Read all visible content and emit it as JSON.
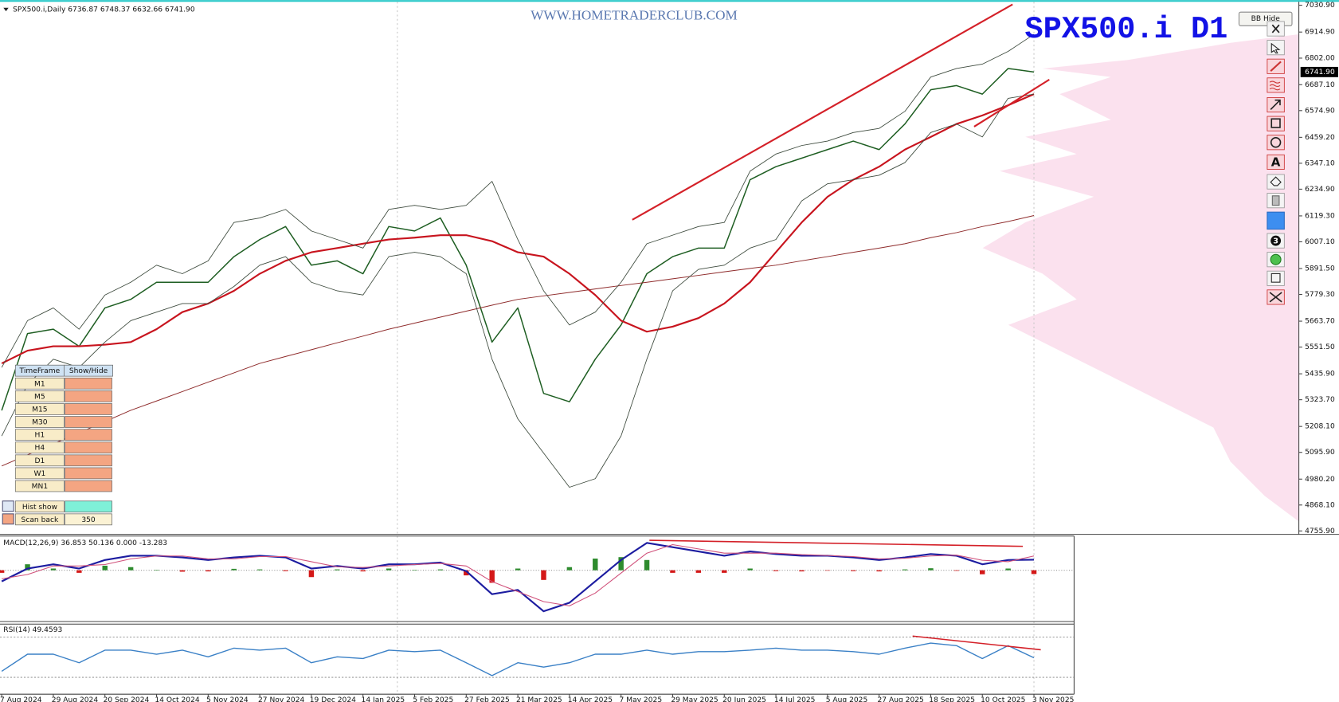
{
  "chart_data": [
    {
      "type": "line",
      "title": "SPX500.i D1",
      "watermark": "WWW.HOMETRADERCLUB.COM",
      "info": "SPX500.i,Daily  6736.87 6748.37 6632.66 6741.90",
      "last_price": {
        "value": 6741.9,
        "label": "6741.90"
      },
      "categories": [
        "7 Aug 2024",
        null,
        "29 Aug 2024",
        null,
        "20 Sep 2024",
        null,
        "14 Oct 2024",
        null,
        "5 Nov 2024",
        null,
        "27 Nov 2024",
        null,
        "19 Dec 2024",
        null,
        "14 Jan 2025",
        null,
        "5 Feb 2025",
        null,
        "27 Feb 2025",
        null,
        "21 Mar 2025",
        null,
        "14 Apr 2025",
        null,
        "7 May 2025",
        null,
        "29 May 2025",
        null,
        "20 Jun 2025",
        null,
        "14 Jul 2025",
        null,
        "5 Aug 2025",
        null,
        "27 Aug 2025",
        null,
        "18 Sep 2025",
        null,
        "10 Oct 2025",
        null,
        "3 Nov 2025"
      ],
      "series": [
        {
          "color": "#1e5e22",
          "values": [
            5277,
            5610,
            5629,
            5555,
            5721,
            5758,
            5832,
            5832,
            5832,
            5943,
            6017,
            6073,
            5906,
            5925,
            5869,
            6073,
            6054,
            6110,
            5906,
            5573,
            5721,
            5351,
            5315,
            5499,
            5647,
            5869,
            5943,
            5980,
            5980,
            6276,
            6332,
            6369,
            6406,
            6443,
            6406,
            6517,
            6665,
            6683,
            6646,
            6757,
            6741.9
          ]
        },
        {
          "color": "#c8141e",
          "values": [
            5481,
            5536,
            5555,
            5555,
            5562,
            5573,
            5629,
            5703,
            5740,
            5795,
            5869,
            5925,
            5962,
            5980,
            5999,
            6017,
            6025,
            6036,
            6036,
            6010,
            5962,
            5943,
            5869,
            5777,
            5666,
            5618,
            5640,
            5677,
            5740,
            5832,
            5962,
            6091,
            6202,
            6276,
            6332,
            6406,
            6461,
            6517,
            6554,
            6598,
            6646
          ]
        },
        {
          "color": "#8e2a2a",
          "values": [
            5037,
            5085,
            5133,
            5181,
            5229,
            5278,
            5318,
            5359,
            5400,
            5440,
            5481,
            5511,
            5540,
            5570,
            5599,
            5629,
            5655,
            5681,
            5707,
            5733,
            5758,
            5773,
            5788,
            5803,
            5818,
            5832,
            5847,
            5862,
            5877,
            5892,
            5906,
            5925,
            5943,
            5962,
            5980,
            5999,
            6025,
            6047,
            6073,
            6095,
            6121
          ]
        },
        {
          "color": "#3d4a3d",
          "values": [
            5463,
            5666,
            5721,
            5629,
            5777,
            5832,
            5906,
            5869,
            5925,
            6091,
            6110,
            6147,
            6054,
            6017,
            5980,
            6147,
            6165,
            6147,
            6165,
            6269,
            6017,
            5795,
            5647,
            5703,
            5832,
            5999,
            6036,
            6073,
            6091,
            6313,
            6387,
            6424,
            6443,
            6480,
            6498,
            6572,
            6720,
            6757,
            6776,
            6831,
            6905
          ]
        },
        {
          "color": "#3d4a3d",
          "values": [
            5167,
            5389,
            5499,
            5463,
            5573,
            5666,
            5703,
            5740,
            5740,
            5814,
            5906,
            5943,
            5832,
            5795,
            5777,
            5943,
            5962,
            5943,
            5869,
            5499,
            5241,
            5093,
            4945,
            4982,
            5167,
            5499,
            5795,
            5888,
            5906,
            5980,
            6017,
            6184,
            6258,
            6276,
            6295,
            6350,
            6480,
            6517,
            6461,
            6628,
            6646
          ]
        }
      ],
      "ylim": [
        4755.9,
        7030.9
      ],
      "yticks": [
        {
          "value": 7030.9,
          "label": "7030.90"
        },
        {
          "value": 6914.9,
          "label": "6914.90"
        },
        {
          "value": 6802,
          "label": "6802.00"
        },
        {
          "value": 6687.1,
          "label": "6687.10"
        },
        {
          "value": 6574.9,
          "label": "6574.90"
        },
        {
          "value": 6459.2,
          "label": "6459.20"
        },
        {
          "value": 6347.1,
          "label": "6347.10"
        },
        {
          "value": 6234.9,
          "label": "6234.90"
        },
        {
          "value": 6119.3,
          "label": "6119.30"
        },
        {
          "value": 6007.1,
          "label": "6007.10"
        },
        {
          "value": 5891.5,
          "label": "5891.50"
        },
        {
          "value": 5779.3,
          "label": "5779.30"
        },
        {
          "value": 5663.7,
          "label": "5663.70"
        },
        {
          "value": 5551.5,
          "label": "5551.50"
        },
        {
          "value": 5435.9,
          "label": "5435.90"
        },
        {
          "value": 5323.7,
          "label": "5323.70"
        },
        {
          "value": 5208.1,
          "label": "5208.10"
        },
        {
          "value": 5095.9,
          "label": "5095.90"
        },
        {
          "value": 4980.2,
          "label": "4980.20"
        },
        {
          "value": 4868.1,
          "label": "4868.10"
        },
        {
          "value": 4755.9,
          "label": "4755.90"
        }
      ]
    },
    {
      "type": "macd",
      "title": "MACD(12,26,9) 36.853 50.136 0.000 -13.283",
      "ylim": [
        -180,
        120
      ],
      "series": [
        {
          "color": "#1c1ca0",
          "values": [
            -39,
            6,
            21,
            6,
            36,
            51,
            51,
            45,
            36,
            45,
            51,
            45,
            6,
            15,
            6,
            21,
            21,
            27,
            -3,
            -84,
            -69,
            -144,
            -114,
            -39,
            36,
            96,
            81,
            66,
            51,
            66,
            57,
            51,
            51,
            45,
            36,
            45,
            57,
            51,
            21,
            36,
            36.853
          ]
        },
        {
          "color": "#d0507a",
          "values": [
            -30,
            -15,
            15,
            15,
            20,
            40,
            50,
            50,
            40,
            40,
            48,
            48,
            30,
            12,
            10,
            15,
            20,
            24,
            15,
            -40,
            -75,
            -110,
            -125,
            -80,
            -10,
            60,
            90,
            75,
            60,
            60,
            60,
            55,
            52,
            48,
            40,
            42,
            50,
            53,
            35,
            30,
            50.136
          ]
        }
      ],
      "histogram": {
        "colors": [
          "#2e8b2e",
          "#d41818"
        ],
        "values": [
          -9,
          21,
          6,
          -9,
          16,
          11,
          1,
          -5,
          -4,
          5,
          3,
          -3,
          -24,
          3,
          -4,
          6,
          1,
          3,
          -18,
          -44,
          6,
          -34,
          11,
          41,
          46,
          36,
          -9,
          -9,
          -9,
          6,
          -3,
          -4,
          -1,
          -3,
          -4,
          3,
          7,
          -2,
          -14,
          6,
          -13.283
        ]
      }
    },
    {
      "type": "rsi",
      "title": "RSI(14) 49.4593",
      "ylim": [
        15,
        82
      ],
      "levels": [
        30,
        70
      ],
      "color": "#3a80c6",
      "values": [
        36,
        53,
        53,
        44.5,
        57,
        57,
        53,
        57,
        50.4,
        59,
        57,
        59,
        44.5,
        50.4,
        48.7,
        57,
        55.5,
        57,
        44.5,
        31.7,
        44.5,
        40.2,
        44.5,
        53,
        53,
        57,
        53,
        55.5,
        55.5,
        57,
        59,
        57,
        57,
        55.5,
        53,
        59,
        64,
        61.5,
        48.7,
        61.5,
        49.4593
      ]
    }
  ],
  "timeframe_panel": {
    "headers": [
      "TimeFrame",
      "Show/Hide"
    ],
    "rows": [
      "M1",
      "M5",
      "M15",
      "M30",
      "H1",
      "H4",
      "D1",
      "W1",
      "MN1"
    ],
    "hist_show": "Hist show",
    "scan_back": "Scan back",
    "scan_back_value": 350
  },
  "toolbar": {
    "button": "BB Hide",
    "text_tool": "A",
    "badge": "3"
  }
}
